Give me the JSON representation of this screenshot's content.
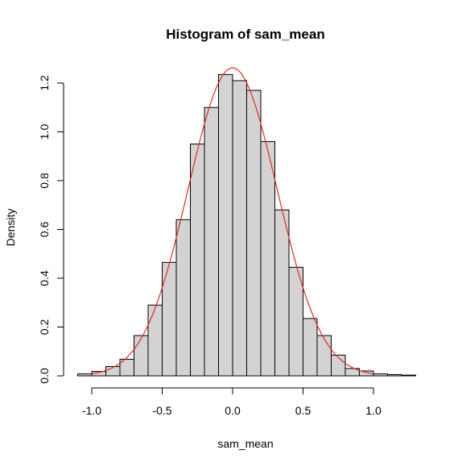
{
  "chart_data": {
    "type": "bar",
    "title": "Histogram of sam_mean",
    "xlabel": "sam_mean",
    "ylabel": "Density",
    "xlim": [
      -1.1,
      1.3
    ],
    "ylim": [
      0,
      1.2
    ],
    "bin_width": 0.1,
    "bins": [
      {
        "start": -1.1,
        "end": -1.0,
        "value": 0.008
      },
      {
        "start": -1.0,
        "end": -0.9,
        "value": 0.018
      },
      {
        "start": -0.9,
        "end": -0.8,
        "value": 0.038
      },
      {
        "start": -0.8,
        "end": -0.7,
        "value": 0.068
      },
      {
        "start": -0.7,
        "end": -0.6,
        "value": 0.165
      },
      {
        "start": -0.6,
        "end": -0.5,
        "value": 0.29
      },
      {
        "start": -0.5,
        "end": -0.4,
        "value": 0.465
      },
      {
        "start": -0.4,
        "end": -0.3,
        "value": 0.64
      },
      {
        "start": -0.3,
        "end": -0.2,
        "value": 0.95
      },
      {
        "start": -0.2,
        "end": -0.1,
        "value": 1.1
      },
      {
        "start": -0.1,
        "end": 0.0,
        "value": 1.235
      },
      {
        "start": 0.0,
        "end": 0.1,
        "value": 1.21
      },
      {
        "start": 0.1,
        "end": 0.2,
        "value": 1.17
      },
      {
        "start": 0.2,
        "end": 0.3,
        "value": 0.96
      },
      {
        "start": 0.3,
        "end": 0.4,
        "value": 0.68
      },
      {
        "start": 0.4,
        "end": 0.5,
        "value": 0.445
      },
      {
        "start": 0.5,
        "end": 0.6,
        "value": 0.235
      },
      {
        "start": 0.6,
        "end": 0.7,
        "value": 0.165
      },
      {
        "start": 0.7,
        "end": 0.8,
        "value": 0.085
      },
      {
        "start": 0.8,
        "end": 0.9,
        "value": 0.03
      },
      {
        "start": 0.9,
        "end": 1.0,
        "value": 0.02
      },
      {
        "start": 1.0,
        "end": 1.1,
        "value": 0.008
      },
      {
        "start": 1.1,
        "end": 1.2,
        "value": 0.005
      },
      {
        "start": 1.2,
        "end": 1.3,
        "value": 0.003
      }
    ],
    "density_curve": {
      "type": "normal",
      "mean": 0.0,
      "sd": 0.316,
      "color": "#e32b1d"
    },
    "x_ticks": [
      {
        "value": -1.0,
        "label": "-1.0"
      },
      {
        "value": -0.5,
        "label": "-0.5"
      },
      {
        "value": 0.0,
        "label": "0.0"
      },
      {
        "value": 0.5,
        "label": "0.5"
      },
      {
        "value": 1.0,
        "label": "1.0"
      }
    ],
    "y_ticks": [
      {
        "value": 0.0,
        "label": "0.0"
      },
      {
        "value": 0.2,
        "label": "0.2"
      },
      {
        "value": 0.4,
        "label": "0.4"
      },
      {
        "value": 0.6,
        "label": "0.6"
      },
      {
        "value": 0.8,
        "label": "0.8"
      },
      {
        "value": 1.0,
        "label": "1.0"
      },
      {
        "value": 1.2,
        "label": "1.2"
      }
    ],
    "bar_fill": "#d3d3d3",
    "bar_stroke": "#000000",
    "grid": false,
    "legend": "none"
  }
}
